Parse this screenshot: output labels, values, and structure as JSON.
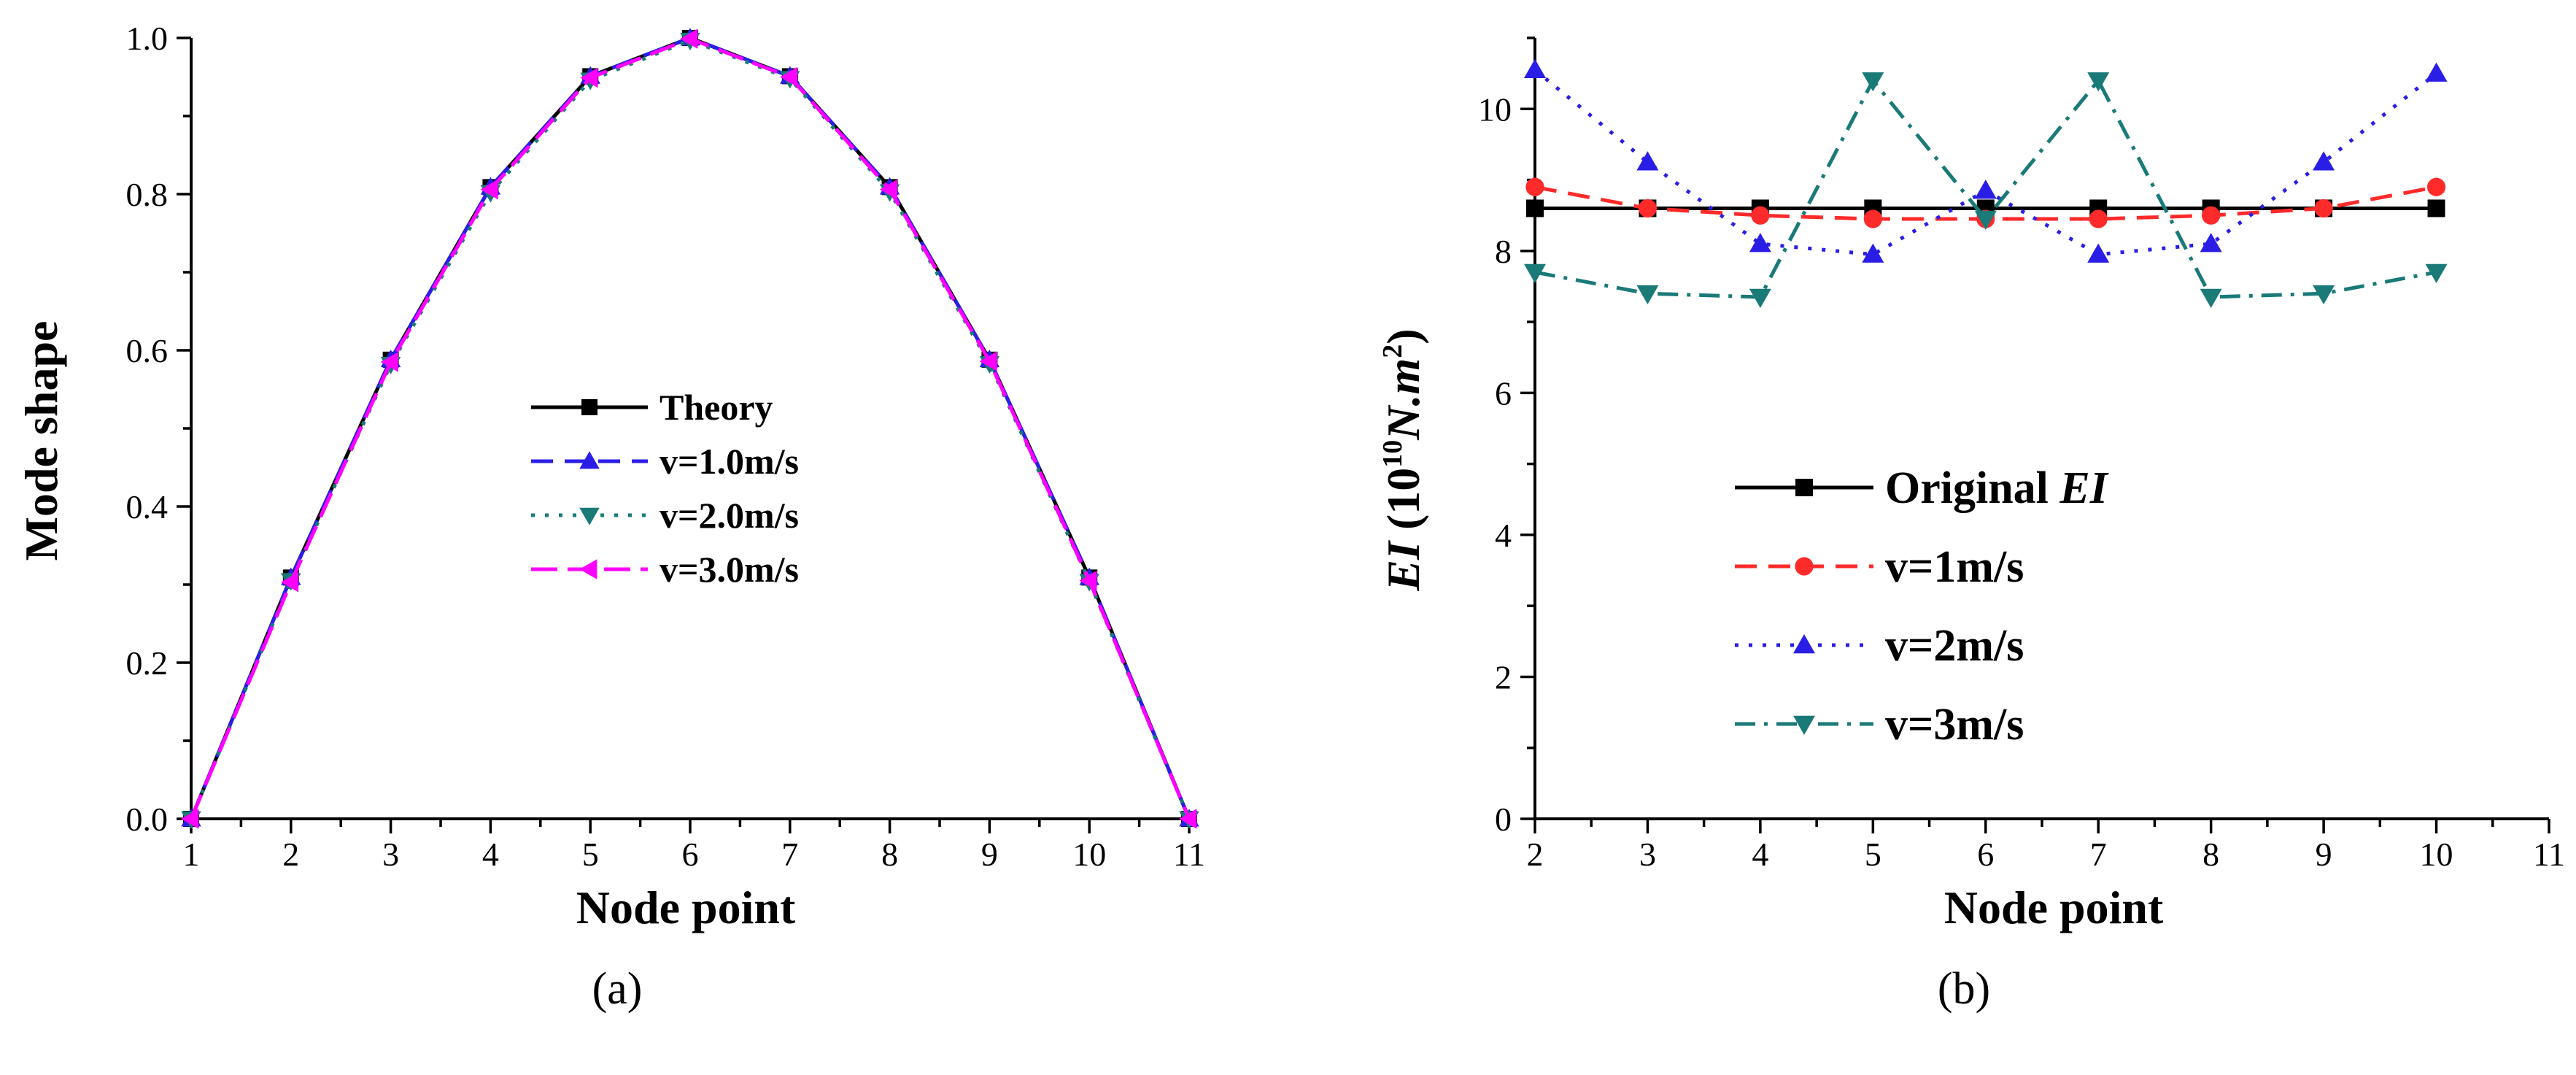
{
  "chart_data": [
    {
      "panel": "(a)",
      "type": "line",
      "xlabel": "Node point",
      "ylabel": "Mode shape",
      "xlim": [
        1,
        11
      ],
      "ylim": [
        0,
        1.0
      ],
      "xticks": [
        "1",
        "2",
        "3",
        "4",
        "5",
        "6",
        "7",
        "8",
        "9",
        "10",
        "11"
      ],
      "yticks": [
        "0.0",
        "0.2",
        "0.4",
        "0.6",
        "0.8",
        "1.0"
      ],
      "legend_position": "center",
      "x": [
        1,
        2,
        3,
        4,
        5,
        6,
        7,
        8,
        9,
        10,
        11
      ],
      "series": [
        {
          "name": "Theory",
          "color": "#000000",
          "marker": "square",
          "dash": "solid",
          "values": [
            0,
            0.309,
            0.588,
            0.809,
            0.951,
            1.0,
            0.951,
            0.809,
            0.588,
            0.309,
            0
          ]
        },
        {
          "name": "v=1.0m/s",
          "color": "#2a1ee6",
          "marker": "triangle-up",
          "dash": "dash",
          "values": [
            0,
            0.309,
            0.588,
            0.809,
            0.951,
            1.0,
            0.951,
            0.809,
            0.588,
            0.309,
            0
          ]
        },
        {
          "name": "v=2.0m/s",
          "color": "#1a7a78",
          "marker": "triangle-down",
          "dash": "dot",
          "values": [
            0,
            0.305,
            0.582,
            0.802,
            0.946,
            0.997,
            0.948,
            0.803,
            0.583,
            0.304,
            0
          ]
        },
        {
          "name": "v=3.0m/s",
          "color": "#ff00ff",
          "marker": "triangle-left",
          "dash": "longdash",
          "values": [
            0,
            0.303,
            0.585,
            0.806,
            0.949,
            0.999,
            0.95,
            0.806,
            0.586,
            0.305,
            0
          ]
        }
      ]
    },
    {
      "panel": "(b)",
      "type": "line",
      "xlabel": "Node point",
      "ylabel_parts": {
        "ei": "EI",
        "open": " (10",
        "exp1": "10",
        "unit": "N.m",
        "exp2": "2",
        "close": ")"
      },
      "xlim": [
        2,
        11
      ],
      "ylim": [
        0,
        11
      ],
      "xticks": [
        "2",
        "3",
        "4",
        "5",
        "6",
        "7",
        "8",
        "9",
        "10",
        "11"
      ],
      "yticks": [
        "0",
        "2",
        "4",
        "6",
        "8",
        "10"
      ],
      "legend_position": "lower-center",
      "x": [
        2,
        3,
        4,
        5,
        6,
        7,
        8,
        9,
        10
      ],
      "series": [
        {
          "name": "Original ",
          "name_italic": "EI",
          "color": "#000000",
          "marker": "square",
          "dash": "solid",
          "values": [
            8.6,
            8.6,
            8.6,
            8.6,
            8.6,
            8.6,
            8.6,
            8.6,
            8.6
          ]
        },
        {
          "name": "v=1m/s",
          "color": "#ff2a2a",
          "marker": "circle",
          "dash": "dash",
          "values": [
            8.9,
            8.6,
            8.5,
            8.45,
            8.45,
            8.45,
            8.5,
            8.6,
            8.9
          ]
        },
        {
          "name": "v=2m/s",
          "color": "#2a1ee6",
          "marker": "triangle-up",
          "dash": "dot",
          "values": [
            10.55,
            9.25,
            8.1,
            7.95,
            8.85,
            7.95,
            8.1,
            9.25,
            10.5
          ]
        },
        {
          "name": "v=3m/s",
          "color": "#1a7a78",
          "marker": "triangle-down",
          "dash": "dashdot",
          "values": [
            7.7,
            7.4,
            7.35,
            10.4,
            8.45,
            10.4,
            7.35,
            7.4,
            7.7
          ]
        }
      ]
    }
  ]
}
